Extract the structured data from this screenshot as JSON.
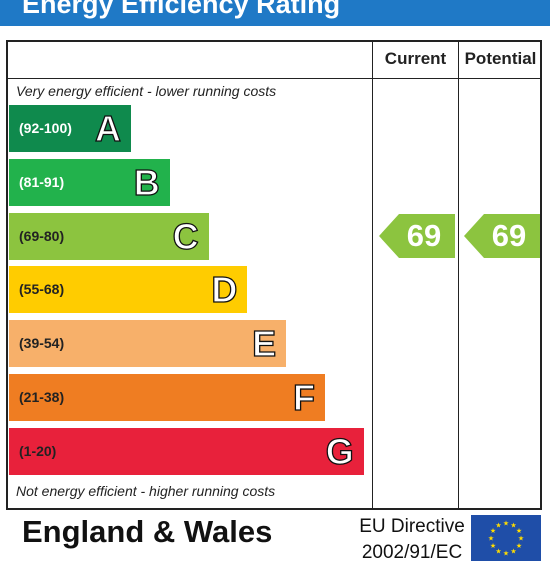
{
  "header": {
    "title": "Energy Efficiency Rating"
  },
  "columns": {
    "current": "Current",
    "potential": "Potential"
  },
  "notes": {
    "top": "Very energy efficient - lower running costs",
    "bottom": "Not energy efficient - higher running costs"
  },
  "footer": {
    "region": "England & Wales",
    "directive_line1": "EU Directive",
    "directive_line2": "2002/91/EC"
  },
  "chart_data": {
    "type": "bar",
    "title": "Energy Efficiency Rating",
    "bands": [
      {
        "letter": "A",
        "range": "(92-100)",
        "color": "#0f8a4d"
      },
      {
        "letter": "B",
        "range": "(81-91)",
        "color": "#22b24c"
      },
      {
        "letter": "C",
        "range": "(69-80)",
        "color": "#8cc43f"
      },
      {
        "letter": "D",
        "range": "(55-68)",
        "color": "#ffcc00"
      },
      {
        "letter": "E",
        "range": "(39-54)",
        "color": "#f7b06a"
      },
      {
        "letter": "F",
        "range": "(21-38)",
        "color": "#ef7d22"
      },
      {
        "letter": "G",
        "range": "(1-20)",
        "color": "#e8213b"
      }
    ],
    "current": {
      "value": 69,
      "band": "C",
      "color": "#8cc43f"
    },
    "potential": {
      "value": 69,
      "band": "C",
      "color": "#8cc43f"
    }
  }
}
